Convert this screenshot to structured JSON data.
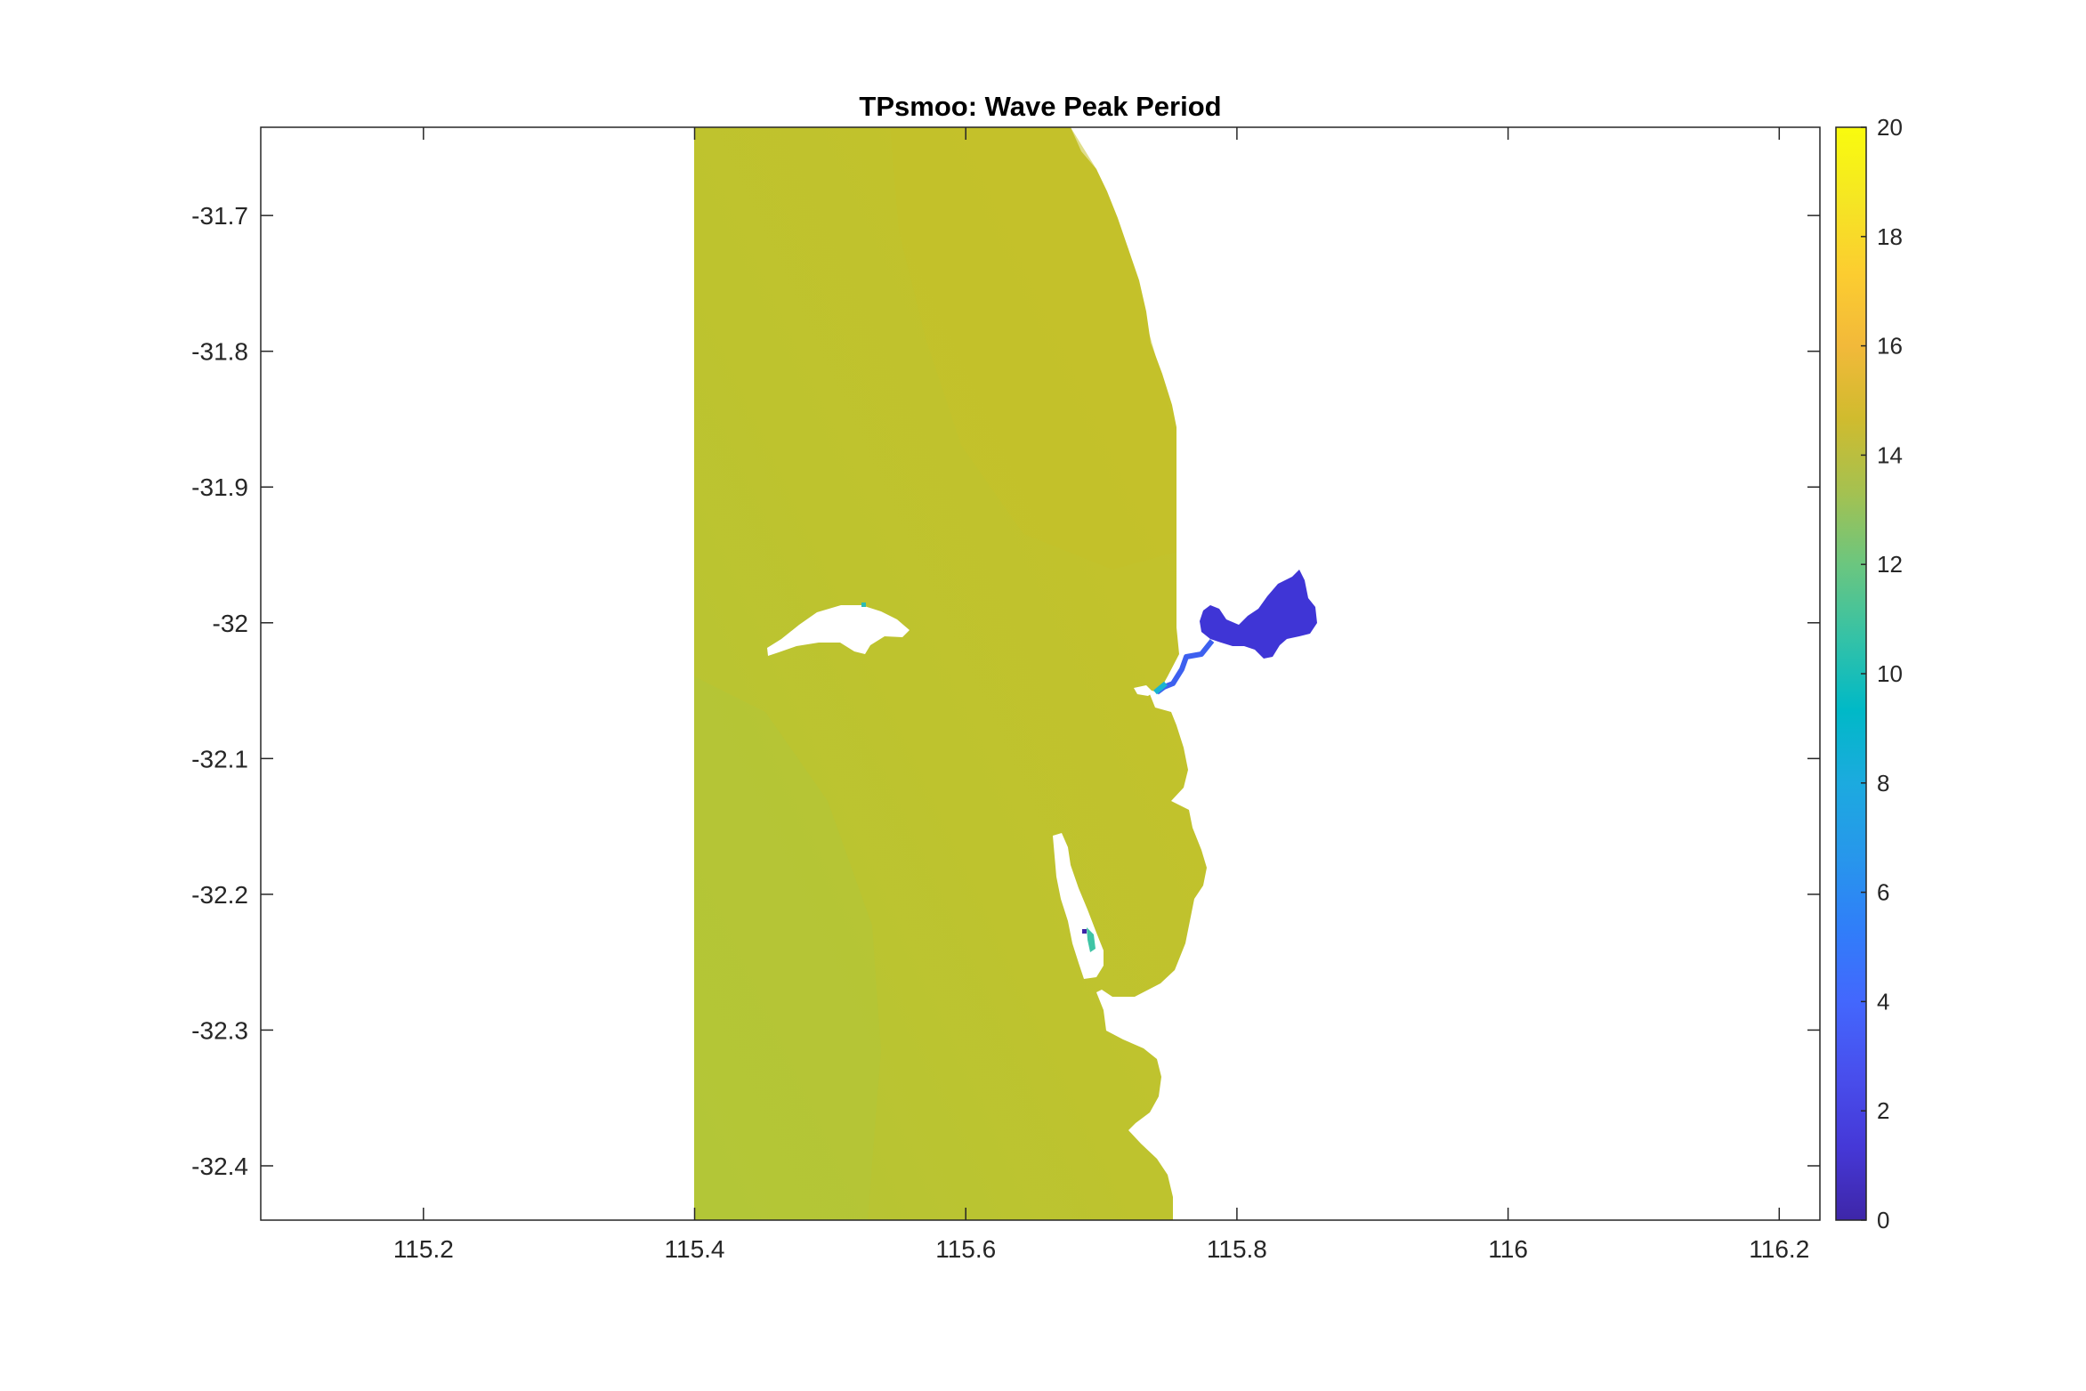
{
  "chart_data": {
    "type": "heatmap",
    "title": "TPsmoo: Wave Peak Period",
    "xlabel": "",
    "ylabel": "",
    "xlim": [
      115.08,
      116.23
    ],
    "ylim": [
      -32.44,
      -31.635
    ],
    "xticks": [
      115.2,
      115.4,
      115.6,
      115.8,
      116,
      116.2
    ],
    "xtick_labels": [
      "115.2",
      "115.4",
      "115.6",
      "115.8",
      "116",
      "116.2"
    ],
    "yticks": [
      -31.7,
      -31.8,
      -31.9,
      -32,
      -32.1,
      -32.2,
      -32.3,
      -32.4
    ],
    "ytick_labels": [
      "-31.7",
      "-31.8",
      "-31.9",
      "-32",
      "-32.1",
      "-32.2",
      "-32.3",
      "-32.4"
    ],
    "grid": false,
    "colormap": "parula",
    "colorbar": {
      "range": [
        0,
        20
      ],
      "ticks": [
        0,
        2,
        4,
        6,
        8,
        10,
        12,
        14,
        16,
        18,
        20
      ],
      "tick_labels": [
        "0",
        "2",
        "4",
        "6",
        "8",
        "10",
        "12",
        "14",
        "16",
        "18",
        "20"
      ],
      "colors": [
        "#3e26a8",
        "#4538d7",
        "#484fed",
        "#4367fd",
        "#307ef9",
        "#2797eb",
        "#1caadf",
        "#00b9c7",
        "#35c2a6",
        "#6bc67f",
        "#a5c150",
        "#d0bb2e",
        "#f2b93a",
        "#fccd30",
        "#f5e623",
        "#f9fb0e"
      ]
    },
    "regions": [
      {
        "name": "offshore-domain",
        "approx_value": 14.8,
        "color": "#c2c22c"
      },
      {
        "name": "southwest-domain",
        "approx_value": 14.2,
        "color": "#b6c534"
      },
      {
        "name": "estuary",
        "approx_value": 1.6,
        "color": "#3f35d6"
      },
      {
        "name": "river-channel",
        "approx_value": 5,
        "color": "#3d60ef"
      },
      {
        "name": "channel-mouth",
        "approx_value": 10,
        "color": "#19b4d2"
      }
    ]
  }
}
